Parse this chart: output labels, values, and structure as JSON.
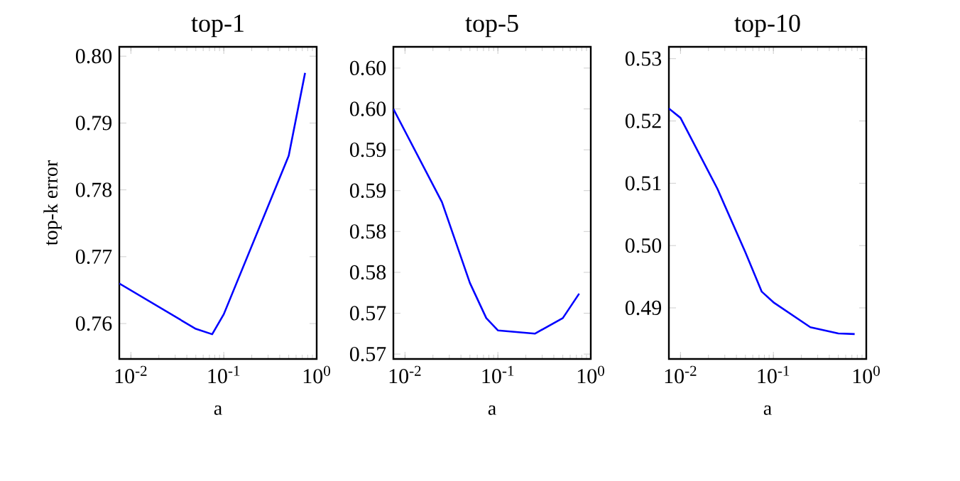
{
  "chart_data": [
    {
      "type": "line",
      "title": "top-1",
      "xlabel": "a",
      "ylabel": "top-k error",
      "log": "x",
      "grid": false,
      "marker": "none",
      "line_style": "solid",
      "xlim": [
        0.0075,
        1
      ],
      "ylim": [
        0.7547,
        0.8014
      ],
      "xticks": [
        {
          "value": 0.01,
          "label": "10$^{-2}$"
        },
        {
          "value": 0.1,
          "label": "10$^{-1}$"
        },
        {
          "value": 1,
          "label": "10$^{0}$"
        }
      ],
      "yticks": [
        0.76,
        0.77,
        0.78,
        0.79,
        {
          "value": 0.8,
          "label": "0.80"
        }
      ],
      "series": [
        {
          "color": "#0000ff",
          "x": [
            0.0075,
            0.05,
            0.075,
            0.1,
            0.5,
            0.75
          ],
          "values": [
            0.766,
            0.7592,
            0.7584,
            0.7614,
            0.7851,
            0.7975
          ]
        }
      ]
    },
    {
      "type": "line",
      "title": "top-5",
      "xlabel": "a",
      "log": "x",
      "grid": false,
      "marker": "none",
      "line_style": "solid",
      "xlim": [
        0.0075,
        1
      ],
      "ylim": [
        0.5694,
        0.6076
      ],
      "xticks": [
        {
          "value": 0.01,
          "label": "10$^{-2}$"
        },
        {
          "value": 0.1,
          "label": "10$^{-1}$"
        },
        {
          "value": 1,
          "label": "10$^{0}$"
        }
      ],
      "yticks": [
        {
          "value": 0.57,
          "label": "0.57"
        },
        {
          "value": 0.575,
          "label": "0.57"
        },
        {
          "value": 0.58,
          "label": "0.58"
        },
        {
          "value": 0.585,
          "label": "0.58"
        },
        {
          "value": 0.59,
          "label": "0.59"
        },
        {
          "value": 0.595,
          "label": "0.59"
        },
        {
          "value": 0.6,
          "label": "0.60"
        },
        {
          "value": 0.605,
          "label": "0.60"
        }
      ],
      "series": [
        {
          "color": "#0000ff",
          "x": [
            0.0075,
            0.025,
            0.05,
            0.075,
            0.1,
            0.25,
            0.5,
            0.75
          ],
          "values": [
            0.6,
            0.5886,
            0.5787,
            0.5744,
            0.5729,
            0.5725,
            0.5744,
            0.5774
          ]
        }
      ]
    },
    {
      "type": "line",
      "title": "top-10",
      "xlabel": "a",
      "log": "x",
      "grid": false,
      "marker": "none",
      "line_style": "solid",
      "xlim": [
        0.0075,
        1
      ],
      "ylim": [
        0.4818,
        0.5319
      ],
      "xticks": [
        {
          "value": 0.01,
          "label": "10$^{-2}$"
        },
        {
          "value": 0.1,
          "label": "10$^{-1}$"
        },
        {
          "value": 1,
          "label": "10$^{0}$"
        }
      ],
      "yticks": [
        0.49,
        {
          "value": 0.5,
          "label": "0.50"
        },
        0.51,
        0.52,
        0.53
      ],
      "series": [
        {
          "color": "#0000ff",
          "x": [
            0.0075,
            0.01,
            0.025,
            0.05,
            0.075,
            0.1,
            0.25,
            0.5,
            0.75
          ],
          "values": [
            0.522,
            0.5205,
            0.5091,
            0.4989,
            0.4926,
            0.4909,
            0.4869,
            0.4859,
            0.4858
          ]
        }
      ]
    }
  ]
}
